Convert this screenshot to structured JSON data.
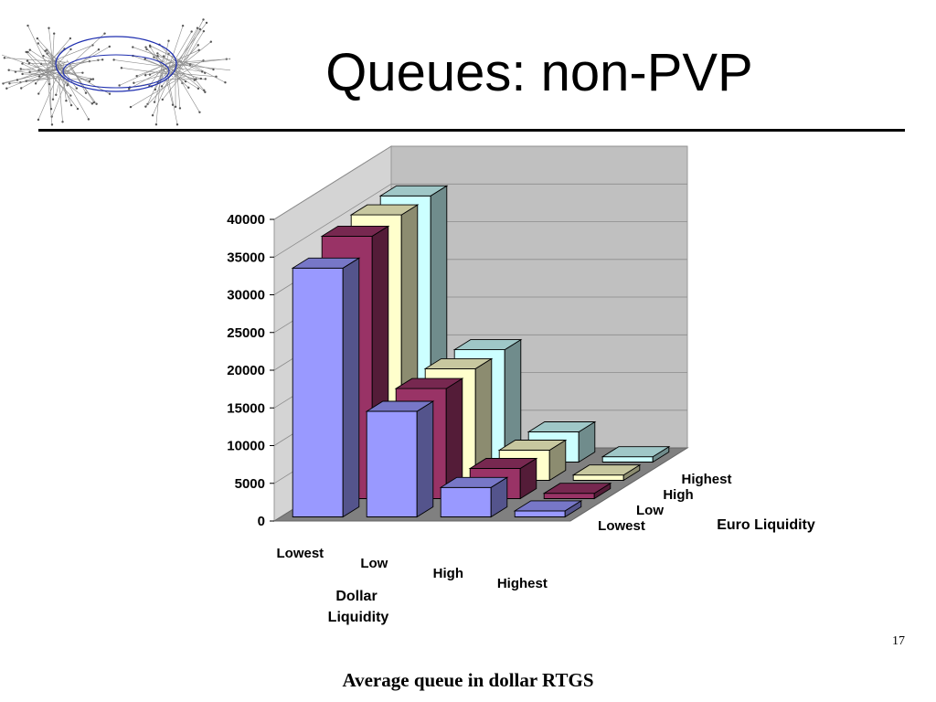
{
  "slide": {
    "title": "Queues: non-PVP",
    "page_number": "17",
    "caption": "Average queue in dollar RTGS"
  },
  "logo": {
    "icon": "network-graph-icon"
  },
  "chart_data": {
    "type": "bar",
    "subtype": "3d-column",
    "title": "",
    "xlabel": "Dollar Liquidity",
    "zlabel": "Euro Liquidity",
    "ylabel": "",
    "ylim": [
      0,
      40000
    ],
    "yticks": [
      "0",
      "5000",
      "10000",
      "15000",
      "20000",
      "25000",
      "30000",
      "35000",
      "40000"
    ],
    "categories": [
      "Lowest",
      "Low",
      "High",
      "Highest"
    ],
    "series": [
      {
        "name": "Lowest",
        "color": "#9999FF",
        "values": [
          33000,
          14000,
          3900,
          800
        ]
      },
      {
        "name": "Low",
        "color": "#993366",
        "values": [
          34800,
          14600,
          4000,
          700
        ]
      },
      {
        "name": "High",
        "color": "#FFFFCC",
        "values": [
          35200,
          14800,
          4000,
          700
        ]
      },
      {
        "name": "Highest",
        "color": "#CCFFFF",
        "values": [
          35300,
          14900,
          4000,
          700
        ]
      }
    ],
    "grid": true,
    "wall_color": "#C0C0C0",
    "floor_color": "#808080"
  }
}
